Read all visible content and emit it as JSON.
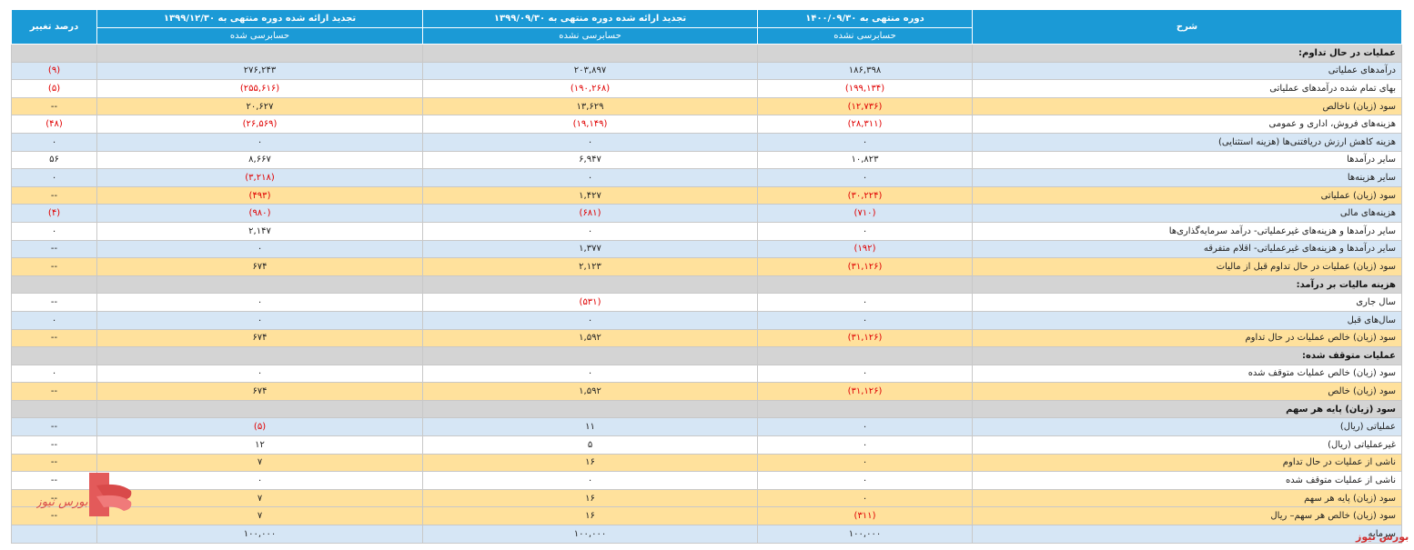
{
  "header": {
    "c1": "شرح",
    "c2": "دوره منتهی به ۱۴۰۰/۰۹/۳۰",
    "c3": "تجدید ارائه شده دوره منتهی به ۱۳۹۹/۰۹/۳۰",
    "c4": "تجدید ارائه شده دوره منتهی به ۱۳۹۹/۱۲/۳۰",
    "c5": "درصد تغییر",
    "s2": "حسابرسی نشده",
    "s3": "حسابرسی نشده",
    "s4": "حسابرسی شده"
  },
  "rows": [
    {
      "label": "عملیات در حال تداوم:"
    },
    {
      "label": "درآمدهای عملیاتی",
      "v1": "۱۸۶,۳۹۸",
      "v2": "۲۰۳,۸۹۷",
      "v3": "۲۷۶,۲۴۳",
      "v4": "(۹)"
    },
    {
      "label": "بهای تمام شده درآمدهای عملیاتی",
      "v1": "(۱۹۹,۱۳۴)",
      "v2": "(۱۹۰,۲۶۸)",
      "v3": "(۲۵۵,۶۱۶)",
      "v4": "(۵)"
    },
    {
      "label": "سود (زیان) ناخالص",
      "v1": "(۱۲,۷۳۶)",
      "v2": "۱۳,۶۲۹",
      "v3": "۲۰,۶۲۷",
      "v4": "--"
    },
    {
      "label": "هزینه‌های فروش، اداری و عمومی",
      "v1": "(۲۸,۳۱۱)",
      "v2": "(۱۹,۱۴۹)",
      "v3": "(۲۶,۵۶۹)",
      "v4": "(۴۸)"
    },
    {
      "label": "هزینه کاهش ارزش دریافتنی‌ها (هزینه استثنایی)",
      "v1": "۰",
      "v2": "۰",
      "v3": "۰",
      "v4": "۰"
    },
    {
      "label": "سایر درآمدها",
      "v1": "۱۰,۸۲۳",
      "v2": "۶,۹۴۷",
      "v3": "۸,۶۶۷",
      "v4": "۵۶"
    },
    {
      "label": "سایر هزینه‌ها",
      "v1": "۰",
      "v2": "۰",
      "v3": "(۳,۲۱۸)",
      "v4": "۰"
    },
    {
      "label": "سود (زیان) عملیاتی",
      "v1": "(۳۰,۲۲۴)",
      "v2": "۱,۴۲۷",
      "v3": "(۴۹۳)",
      "v4": "--"
    },
    {
      "label": "هزینه‌های مالی",
      "v1": "(۷۱۰)",
      "v2": "(۶۸۱)",
      "v3": "(۹۸۰)",
      "v4": "(۴)"
    },
    {
      "label": "سایر درآمدها و هزینه‌های غیرعملیاتی- درآمد سرمایه‌گذاری‌ها",
      "v1": "۰",
      "v2": "۰",
      "v3": "۲,۱۴۷",
      "v4": "۰"
    },
    {
      "label": "سایر درآمدها و هزینه‌های غیرعملیاتی- اقلام متفرقه",
      "v1": "(۱۹۲)",
      "v2": "۱,۳۷۷",
      "v3": "۰",
      "v4": "--"
    },
    {
      "label": "سود (زیان) عملیات در حال تداوم قبل از مالیات",
      "v1": "(۳۱,۱۲۶)",
      "v2": "۲,۱۲۳",
      "v3": "۶۷۴",
      "v4": "--"
    },
    {
      "label": "هزینه مالیات بر درآمد:"
    },
    {
      "label": "سال جاری",
      "v1": "۰",
      "v2": "(۵۳۱)",
      "v3": "۰",
      "v4": "--"
    },
    {
      "label": "سال‌های قبل",
      "v1": "۰",
      "v2": "۰",
      "v3": "۰",
      "v4": "۰"
    },
    {
      "label": "سود (زیان) خالص عملیات در حال تداوم",
      "v1": "(۳۱,۱۲۶)",
      "v2": "۱,۵۹۲",
      "v3": "۶۷۴",
      "v4": "--"
    },
    {
      "label": "عملیات متوقف شده:"
    },
    {
      "label": "سود (زیان) خالص عملیات متوقف شده",
      "v1": "۰",
      "v2": "۰",
      "v3": "۰",
      "v4": "۰"
    },
    {
      "label": "سود (زیان) خالص",
      "v1": "(۳۱,۱۲۶)",
      "v2": "۱,۵۹۲",
      "v3": "۶۷۴",
      "v4": "--"
    },
    {
      "label": "سود (زیان) پایه هر سهم"
    },
    {
      "label": "عملیاتی (ریال)",
      "v1": "۰",
      "v2": "۱۱",
      "v3": "(۵)",
      "v4": "--"
    },
    {
      "label": "غیرعملیاتی (ریال)",
      "v1": "۰",
      "v2": "۵",
      "v3": "۱۲",
      "v4": "--"
    },
    {
      "label": "ناشی از عملیات در حال تداوم",
      "v1": "۰",
      "v2": "۱۶",
      "v3": "۷",
      "v4": "--"
    },
    {
      "label": "ناشی از عملیات متوقف شده",
      "v1": "۰",
      "v2": "۰",
      "v3": "۰",
      "v4": "--"
    },
    {
      "label": "سود (زیان) پایه هر سهم",
      "v1": "۰",
      "v2": "۱۶",
      "v3": "۷",
      "v4": "--"
    },
    {
      "label": "سود (زیان) خالص هر سهم– ریال",
      "v1": "(۳۱۱)",
      "v2": "۱۶",
      "v3": "۷",
      "v4": "--"
    },
    {
      "label": "سرمایه",
      "v1": "۱۰۰,۰۰۰",
      "v2": "۱۰۰,۰۰۰",
      "v3": "۱۰۰,۰۰۰",
      "v4": ""
    }
  ],
  "brand": {
    "logo_text": "بورس نیوز",
    "watermark": "بورس نیوز",
    "color": "#d32f2f"
  }
}
